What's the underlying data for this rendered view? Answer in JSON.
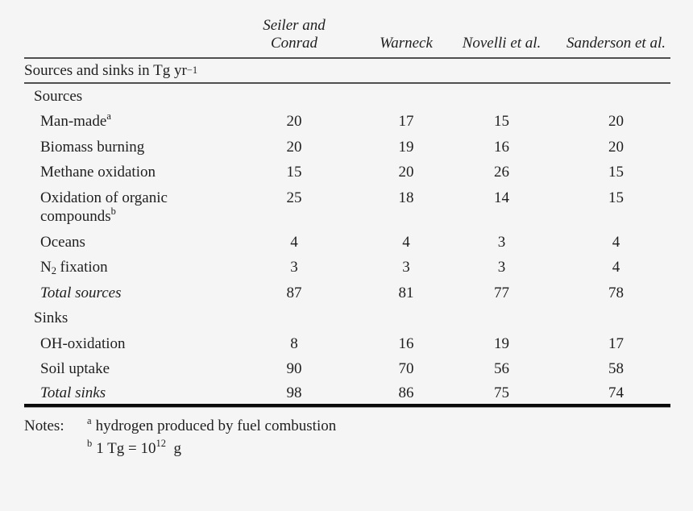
{
  "table": {
    "columns": [
      "Seiler and Conrad",
      "Warneck",
      "Novelli et al.",
      "Sanderson et al."
    ],
    "caption": {
      "text": "Sources and sinks in Tg yr",
      "sup": "−1"
    },
    "section_sources": "Sources",
    "section_sinks": "Sinks",
    "rows": [
      {
        "label": "Man-made",
        "sup": "a",
        "v": [
          "20",
          "17",
          "15",
          "20"
        ]
      },
      {
        "label": "Biomass burning",
        "v": [
          "20",
          "19",
          "16",
          "20"
        ]
      },
      {
        "label": "Methane oxidation",
        "v": [
          "15",
          "20",
          "26",
          "15"
        ]
      },
      {
        "line1": "Oxidation of organic",
        "line2": "compounds",
        "sup": "b",
        "v": [
          "25",
          "18",
          "14",
          "15"
        ]
      },
      {
        "label": "Oceans",
        "v": [
          "4",
          "4",
          "3",
          "4"
        ]
      },
      {
        "pre": "N",
        "sub": "2",
        "post": "fixation",
        "v": [
          "3",
          "3",
          "3",
          "4"
        ]
      },
      {
        "label": "Total sources",
        "v": [
          "87",
          "81",
          "77",
          "78"
        ]
      },
      {
        "label": "OH-oxidation",
        "v": [
          "8",
          "16",
          "19",
          "17"
        ]
      },
      {
        "label": "Soil uptake",
        "v": [
          "90",
          "70",
          "56",
          "58"
        ]
      },
      {
        "label": "Total sinks",
        "v": [
          "98",
          "86",
          "75",
          "74"
        ]
      }
    ]
  },
  "notes": {
    "title": "Notes:",
    "a_sup": "a",
    "a_text": "hydrogen produced by fuel combustion",
    "b_sup": "b",
    "b1": "1 Tg = 10",
    "b_exp": "12",
    "b2": "g"
  }
}
